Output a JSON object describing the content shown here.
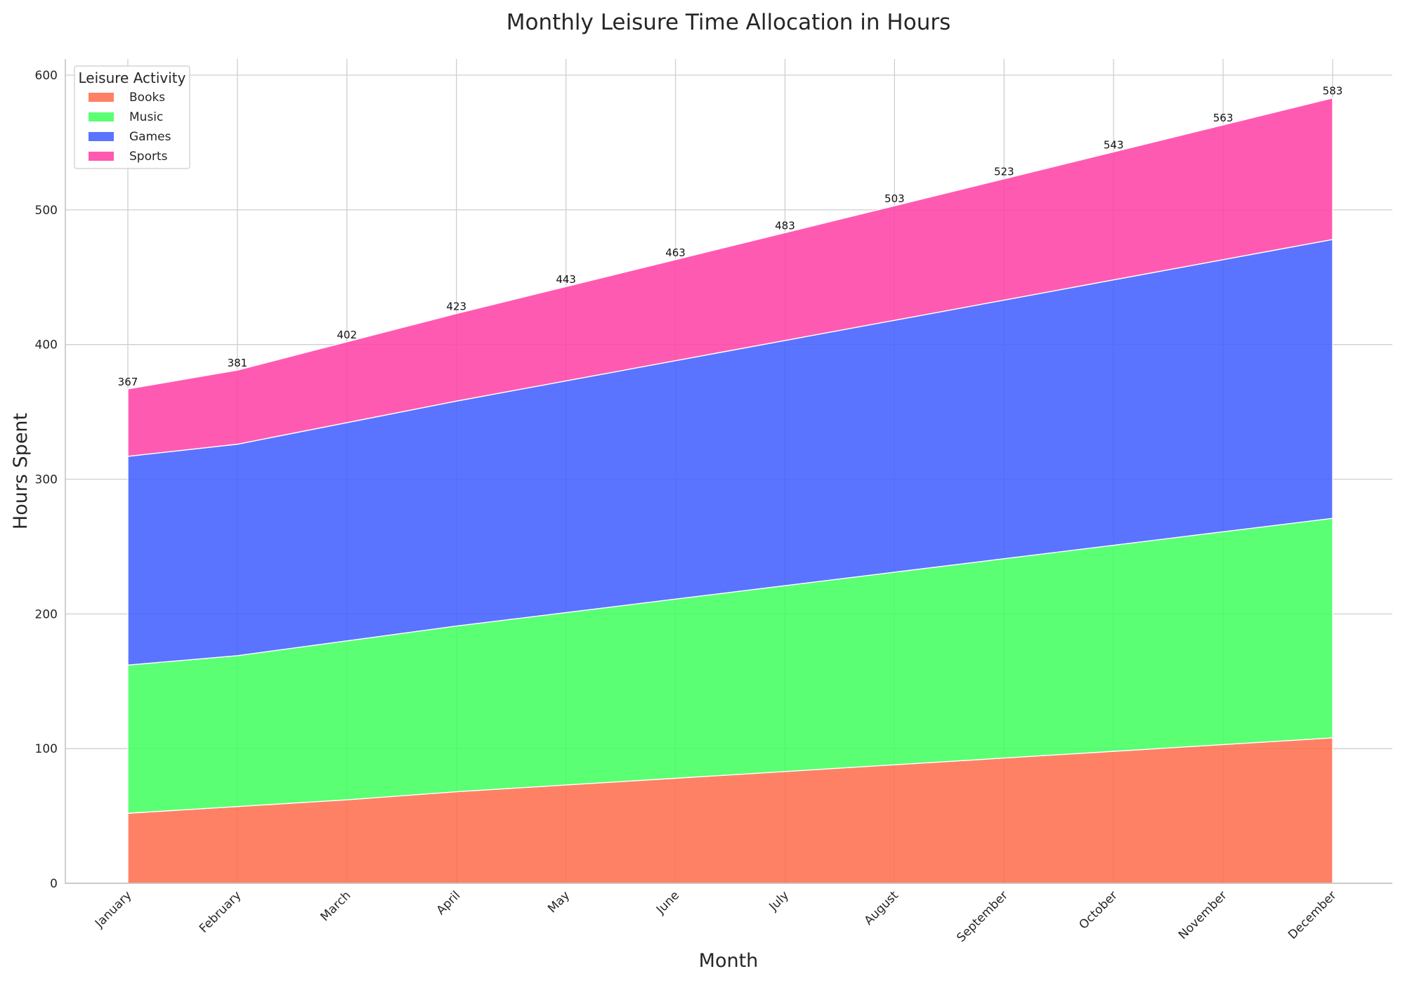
{
  "chart_data": {
    "type": "area",
    "stacked": true,
    "title": "Monthly Leisure Time Allocation in Hours",
    "xlabel": "Month",
    "ylabel": "Hours Spent",
    "categories": [
      "January",
      "February",
      "March",
      "April",
      "May",
      "June",
      "July",
      "August",
      "September",
      "October",
      "November",
      "December"
    ],
    "ylim": [
      0,
      612
    ],
    "yticks": [
      0,
      100,
      200,
      300,
      400,
      500,
      600
    ],
    "grid": true,
    "legend": {
      "title": "Leisure Activity",
      "placement": "top-left"
    },
    "series": [
      {
        "name": "Books",
        "color": "#ff6b4a",
        "values": [
          52,
          57,
          62,
          68,
          73,
          78,
          83,
          88,
          93,
          98,
          103,
          108
        ]
      },
      {
        "name": "Music",
        "color": "#3dff5a",
        "values": [
          110,
          112,
          118,
          123,
          128,
          133,
          138,
          143,
          148,
          153,
          158,
          163
        ]
      },
      {
        "name": "Games",
        "color": "#3d5cff",
        "values": [
          155,
          157,
          162,
          167,
          172,
          177,
          182,
          187,
          192,
          197,
          202,
          207
        ]
      },
      {
        "name": "Sports",
        "color": "#ff3da5",
        "values": [
          50,
          55,
          60,
          65,
          70,
          75,
          80,
          85,
          90,
          95,
          100,
          105
        ]
      }
    ],
    "totals": [
      367,
      381,
      402,
      423,
      443,
      463,
      483,
      503,
      523,
      543,
      563,
      583
    ]
  }
}
